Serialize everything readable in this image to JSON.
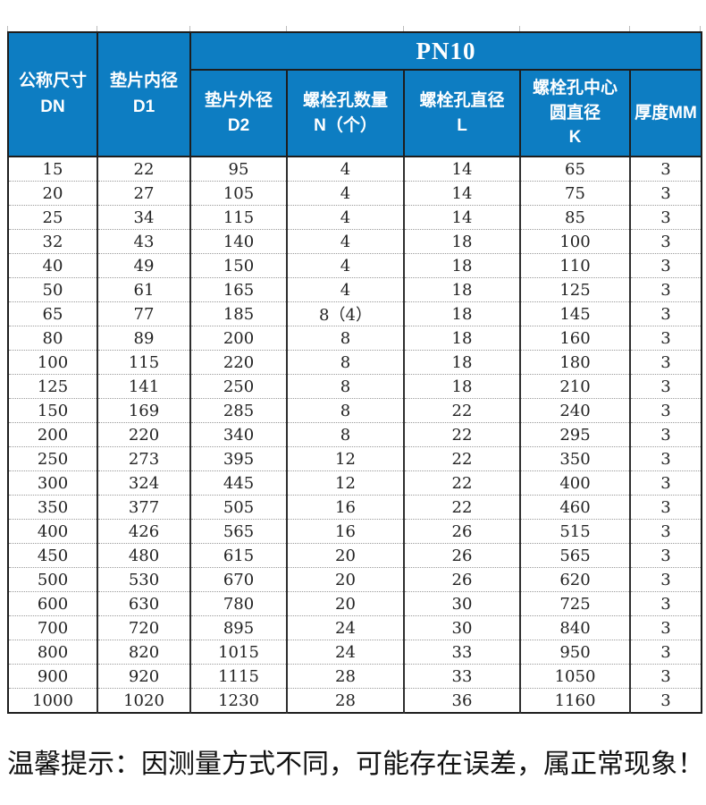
{
  "page": {
    "background": "#ffffff",
    "tip": "温馨提示：因测量方式不同，可能存在误差，属正常现象！"
  },
  "colors": {
    "header_blue": "#0d7dc2",
    "header_text": "#ffffff",
    "grid_dark": "#1d1d1d",
    "row_divider": "#9a9a9a",
    "data_text": "#232323",
    "tip_text": "#111111"
  },
  "table": {
    "group_label": "PN10",
    "headers": [
      "公称尺寸\nDN",
      "垫片内径\nD1",
      "垫片外径\nD2",
      "螺栓孔数量\nN（个）",
      "螺栓孔直径\nL",
      "螺栓孔中心\n圆直径\nK",
      "厚度MM"
    ],
    "columns": [
      "公称尺寸 DN",
      "垫片内径 D1",
      "垫片外径 D2",
      "螺栓孔数量 N（个）",
      "螺栓孔直径 L",
      "螺栓孔中心圆直径 K",
      "厚度MM"
    ],
    "rows": [
      [
        "15",
        "22",
        "95",
        "4",
        "14",
        "65",
        "3"
      ],
      [
        "20",
        "27",
        "105",
        "4",
        "14",
        "75",
        "3"
      ],
      [
        "25",
        "34",
        "115",
        "4",
        "14",
        "85",
        "3"
      ],
      [
        "32",
        "43",
        "140",
        "4",
        "18",
        "100",
        "3"
      ],
      [
        "40",
        "49",
        "150",
        "4",
        "18",
        "110",
        "3"
      ],
      [
        "50",
        "61",
        "165",
        "4",
        "18",
        "125",
        "3"
      ],
      [
        "65",
        "77",
        "185",
        "8（4）",
        "18",
        "145",
        "3"
      ],
      [
        "80",
        "89",
        "200",
        "8",
        "18",
        "160",
        "3"
      ],
      [
        "100",
        "115",
        "220",
        "8",
        "18",
        "180",
        "3"
      ],
      [
        "125",
        "141",
        "250",
        "8",
        "18",
        "210",
        "3"
      ],
      [
        "150",
        "169",
        "285",
        "8",
        "22",
        "240",
        "3"
      ],
      [
        "200",
        "220",
        "340",
        "8",
        "22",
        "295",
        "3"
      ],
      [
        "250",
        "273",
        "395",
        "12",
        "22",
        "350",
        "3"
      ],
      [
        "300",
        "324",
        "445",
        "12",
        "22",
        "400",
        "3"
      ],
      [
        "350",
        "377",
        "505",
        "16",
        "22",
        "460",
        "3"
      ],
      [
        "400",
        "426",
        "565",
        "16",
        "26",
        "515",
        "3"
      ],
      [
        "450",
        "480",
        "615",
        "20",
        "26",
        "565",
        "3"
      ],
      [
        "500",
        "530",
        "670",
        "20",
        "26",
        "620",
        "3"
      ],
      [
        "600",
        "630",
        "780",
        "20",
        "30",
        "725",
        "3"
      ],
      [
        "700",
        "720",
        "895",
        "24",
        "30",
        "840",
        "3"
      ],
      [
        "800",
        "820",
        "1015",
        "24",
        "33",
        "950",
        "3"
      ],
      [
        "900",
        "920",
        "1115",
        "28",
        "33",
        "1050",
        "3"
      ],
      [
        "1000",
        "1020",
        "1230",
        "28",
        "36",
        "1160",
        "3"
      ]
    ]
  }
}
